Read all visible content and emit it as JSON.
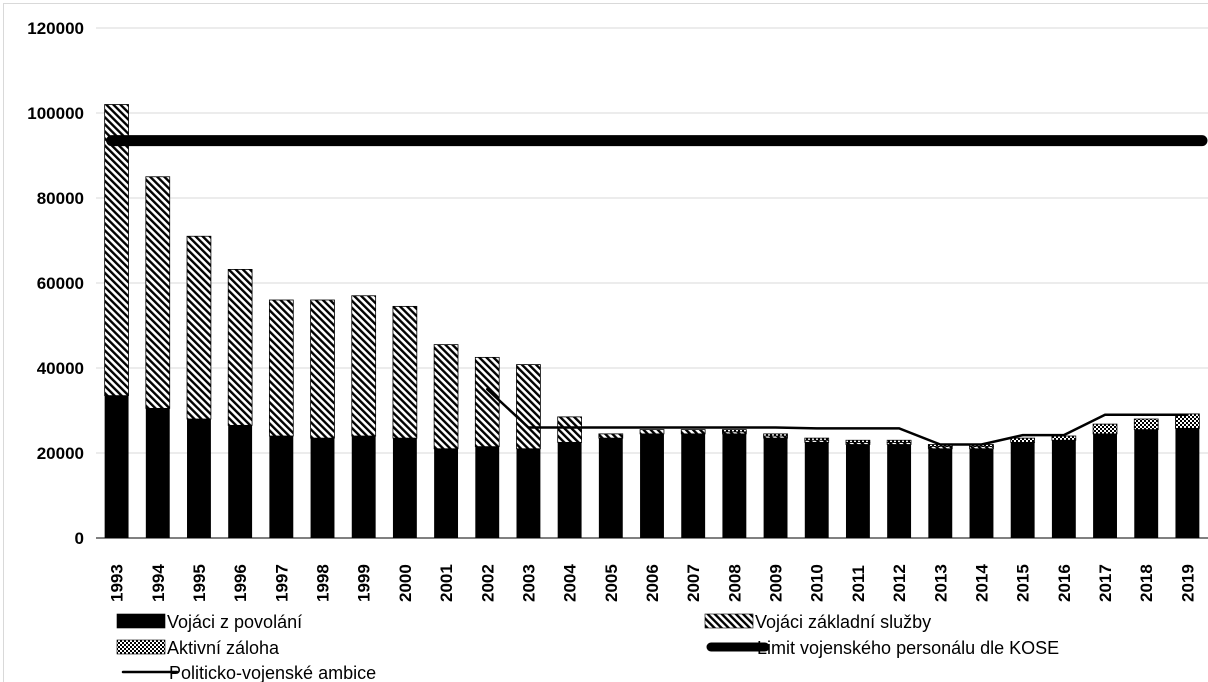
{
  "chart_data": {
    "type": "bar",
    "stacked": true,
    "title": "",
    "xlabel": "",
    "ylabel": "",
    "ylim": [
      0,
      120000
    ],
    "yticks": [
      0,
      20000,
      40000,
      60000,
      80000,
      100000,
      120000
    ],
    "grid": true,
    "legend_position": "bottom",
    "categories": [
      "1993",
      "1994",
      "1995",
      "1996",
      "1997",
      "1998",
      "1999",
      "2000",
      "2001",
      "2002",
      "2003",
      "2004",
      "2005",
      "2006",
      "2007",
      "2008",
      "2009",
      "2010",
      "2011",
      "2012",
      "2013",
      "2014",
      "2015",
      "2016",
      "2017",
      "2018",
      "2019"
    ],
    "series": [
      {
        "name": "Vojáci z povolání",
        "kind": "bar",
        "pattern": "solid",
        "color": "#000000",
        "values": [
          33500,
          30500,
          28000,
          26500,
          24000,
          23500,
          24000,
          23500,
          21000,
          21500,
          21000,
          22500,
          23500,
          24500,
          24500,
          24500,
          23500,
          22500,
          22000,
          22000,
          21000,
          21000,
          22500,
          23000,
          24500,
          25500,
          25800
        ]
      },
      {
        "name": "Vojáci základní služby",
        "kind": "bar",
        "pattern": "diagonal-hatch",
        "color": "#000000",
        "values": [
          68500,
          54500,
          43000,
          36700,
          32000,
          32500,
          33000,
          31000,
          24500,
          21000,
          19800,
          6000,
          1000,
          1000,
          1000,
          500,
          500,
          500,
          500,
          500,
          500,
          500,
          0,
          0,
          0,
          0,
          0
        ]
      },
      {
        "name": "Aktivní záloha",
        "kind": "bar",
        "pattern": "checker",
        "color": "#000000",
        "values": [
          0,
          0,
          0,
          0,
          0,
          0,
          0,
          0,
          0,
          0,
          0,
          0,
          0,
          0,
          0,
          500,
          500,
          500,
          500,
          500,
          500,
          500,
          1000,
          1000,
          2300,
          2500,
          3400
        ]
      },
      {
        "name": "Limit vojenského personálu dle KOSE",
        "kind": "line",
        "stroke": "thick",
        "color": "#000000",
        "values": [
          93500,
          93500,
          93500,
          93500,
          93500,
          93500,
          93500,
          93500,
          93500,
          93500,
          93500,
          93500,
          93500,
          93500,
          93500,
          93500,
          93500,
          93500,
          93500,
          93500,
          93500,
          93500,
          93500,
          93500,
          93500,
          93500,
          93500
        ]
      },
      {
        "name": "Politicko-vojenské ambice",
        "kind": "line",
        "stroke": "thin",
        "color": "#000000",
        "values": [
          null,
          null,
          null,
          null,
          null,
          null,
          null,
          null,
          null,
          35000,
          26000,
          26000,
          26000,
          26000,
          26000,
          26000,
          26000,
          25800,
          25800,
          25800,
          22000,
          22000,
          24200,
          24200,
          29000,
          29000,
          29000
        ]
      }
    ]
  }
}
